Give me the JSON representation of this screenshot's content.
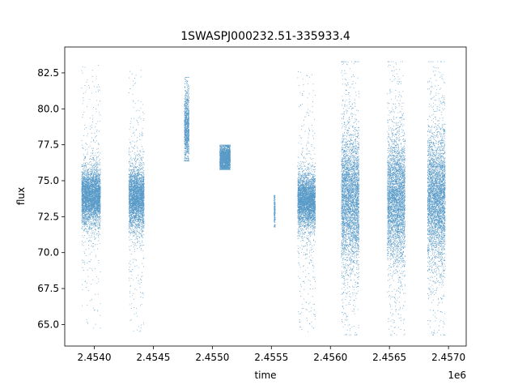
{
  "chart_data": {
    "type": "scatter",
    "title": "1SWASPJ000232.51-335933.4",
    "xlabel": "time",
    "ylabel": "flux",
    "x_offset_label": "1e6",
    "xlim": [
      2.45375,
      2.45715
    ],
    "ylim": [
      63.5,
      84.3
    ],
    "x_ticks": [
      2.454,
      2.4545,
      2.455,
      2.4555,
      2.456,
      2.4565,
      2.457
    ],
    "x_tick_labels": [
      "2.4540",
      "2.4545",
      "2.4550",
      "2.4555",
      "2.4560",
      "2.4565",
      "2.4570"
    ],
    "y_ticks": [
      65.0,
      67.5,
      70.0,
      72.5,
      75.0,
      77.5,
      80.0,
      82.5
    ],
    "y_tick_labels": [
      "65.0",
      "67.5",
      "70.0",
      "72.5",
      "75.0",
      "77.5",
      "80.0",
      "82.5"
    ],
    "grid": false,
    "legend": "none",
    "marker_color": "#1f77b4",
    "observing_seasons": [
      {
        "x_start": 2.45389,
        "x_end": 2.45405,
        "center": 73.9,
        "spread": 0.9,
        "min": 64.5,
        "max": 83.3
      },
      {
        "x_start": 2.45429,
        "x_end": 2.45442,
        "center": 73.9,
        "spread": 1.0,
        "min": 64.5,
        "max": 82.8
      },
      {
        "x_start": 2.45476,
        "x_end": 2.4548,
        "center": 78.7,
        "spread": 1.2,
        "min": 76.4,
        "max": 82.2
      },
      {
        "x_start": 2.45506,
        "x_end": 2.45515,
        "center": 76.5,
        "spread": 0.6,
        "min": 75.8,
        "max": 77.5
      },
      {
        "x_start": 2.45552,
        "x_end": 2.45553,
        "center": 73.0,
        "spread": 0.8,
        "min": 71.8,
        "max": 74.0
      },
      {
        "x_start": 2.45572,
        "x_end": 2.45587,
        "center": 73.6,
        "spread": 0.9,
        "min": 64.5,
        "max": 82.8
      },
      {
        "x_start": 2.45609,
        "x_end": 2.45624,
        "center": 73.8,
        "spread": 2.2,
        "min": 64.3,
        "max": 83.3
      },
      {
        "x_start": 2.45648,
        "x_end": 2.45663,
        "center": 73.8,
        "spread": 2.0,
        "min": 64.3,
        "max": 83.3
      },
      {
        "x_start": 2.45682,
        "x_end": 2.45697,
        "center": 73.8,
        "spread": 2.1,
        "min": 64.3,
        "max": 83.3
      }
    ]
  }
}
